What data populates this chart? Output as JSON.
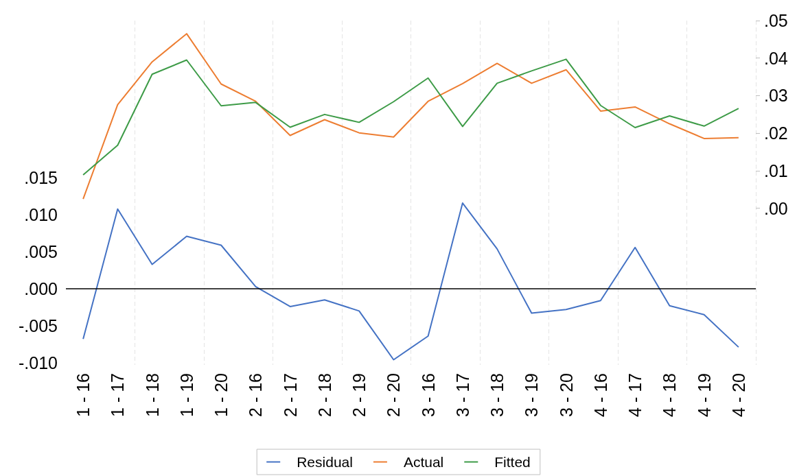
{
  "chart_data": {
    "type": "line",
    "categories": [
      "1 - 16",
      "1 - 17",
      "1 - 18",
      "1 - 19",
      "1 - 20",
      "2 - 16",
      "2 - 17",
      "2 - 18",
      "2 - 19",
      "2 - 20",
      "3 - 16",
      "3 - 17",
      "3 - 18",
      "3 - 19",
      "3 - 20",
      "4 - 16",
      "4 - 17",
      "4 - 18",
      "4 - 19",
      "4 - 20"
    ],
    "series": [
      {
        "name": "Residual",
        "color": "#4472c4",
        "values": [
          -0.0068,
          0.0108,
          0.0033,
          0.0071,
          0.0059,
          0.0003,
          -0.0024,
          -0.0015,
          -0.003,
          -0.0096,
          -0.0064,
          0.0116,
          0.0054,
          -0.0033,
          -0.0028,
          -0.0016,
          0.0056,
          -0.0023,
          -0.0035,
          -0.0079
        ]
      },
      {
        "name": "Actual",
        "color": "#ed7d31",
        "axis": "y2",
        "values": [
          0.0025,
          0.0276,
          0.039,
          0.0465,
          0.0331,
          0.0285,
          0.0194,
          0.0236,
          0.0201,
          0.019,
          0.0285,
          0.0332,
          0.0386,
          0.0333,
          0.0369,
          0.0259,
          0.027,
          0.0225,
          0.0186,
          0.0188
        ]
      },
      {
        "name": "Fitted",
        "color": "#3d9b47",
        "axis": "y2",
        "values": [
          0.0089,
          0.0168,
          0.0357,
          0.0395,
          0.0273,
          0.0282,
          0.0216,
          0.025,
          0.0229,
          0.0284,
          0.0347,
          0.0218,
          0.0333,
          0.0366,
          0.0397,
          0.0274,
          0.0215,
          0.0246,
          0.0219,
          0.0266
        ]
      }
    ],
    "ylim": [
      -0.0103,
      0.0363
    ],
    "yticks": [
      {
        "value": -0.01,
        "label": "-.010"
      },
      {
        "value": -0.005,
        "label": "-.005"
      },
      {
        "value": 0,
        "label": ".000"
      },
      {
        "value": 0.005,
        "label": ".005"
      },
      {
        "value": 0.01,
        "label": ".010"
      },
      {
        "value": 0.015,
        "label": ".015"
      }
    ],
    "y2lim": [
      -0.0417,
      0.05
    ],
    "y2ticks": [
      {
        "value": 0,
        "label": ".00"
      },
      {
        "value": 0.01,
        "label": ".01"
      },
      {
        "value": 0.02,
        "label": ".02"
      },
      {
        "value": 0.03,
        "label": ".03"
      },
      {
        "value": 0.04,
        "label": ".04"
      },
      {
        "value": 0.05,
        "label": ".05"
      }
    ],
    "ref_lines": [
      {
        "axis": "y",
        "value": 0,
        "color": "#000000"
      }
    ],
    "grid": "x",
    "legend": "bottom",
    "marker": "none",
    "line_style": "solid"
  }
}
